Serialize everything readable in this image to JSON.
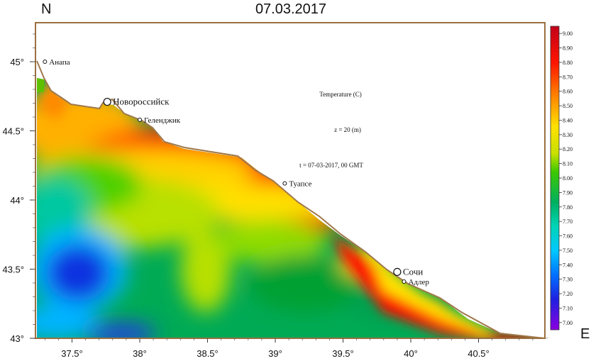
{
  "map": {
    "title": "07.03.2017",
    "north_label": "N",
    "east_label": "E",
    "annotations": {
      "variable": "Temperature (C)",
      "depth": "z = 20 (m)",
      "time": "t = 07-03-2017, 00 GMT"
    },
    "lon_ticks": [
      "37.5°",
      "38°",
      "38.5°",
      "39°",
      "39.5°",
      "40°",
      "40.5°"
    ],
    "lat_ticks": [
      "45°",
      "44.5°",
      "44°",
      "43.5°",
      "43°"
    ],
    "cities": [
      {
        "name": "Анапа",
        "lon": 37.3,
        "lat": 45.0,
        "marker": "small"
      },
      {
        "name": "Новороссийск",
        "lon": 37.76,
        "lat": 44.71,
        "marker": "large"
      },
      {
        "name": "Геленджик",
        "lon": 38.0,
        "lat": 44.58,
        "marker": "small"
      },
      {
        "name": "Туапсе",
        "lon": 39.07,
        "lat": 44.12,
        "marker": "small"
      },
      {
        "name": "Сочи",
        "lon": 39.9,
        "lat": 43.48,
        "marker": "large"
      },
      {
        "name": "Адлер",
        "lon": 39.95,
        "lat": 43.41,
        "marker": "small"
      }
    ],
    "colors": {
      "frame": "#9b7040",
      "coast": "#a0784a"
    }
  },
  "colorbar": {
    "labels": [
      "9.00",
      "8.90",
      "8.80",
      "8.70",
      "8.60",
      "8.50",
      "8.40",
      "8.30",
      "8.20",
      "8.10",
      "8.00",
      "7.90",
      "7.80",
      "7.70",
      "7.60",
      "7.50",
      "7.40",
      "7.30",
      "7.20",
      "7.10",
      "7.00"
    ],
    "min": 6.95,
    "max": 9.05
  }
}
